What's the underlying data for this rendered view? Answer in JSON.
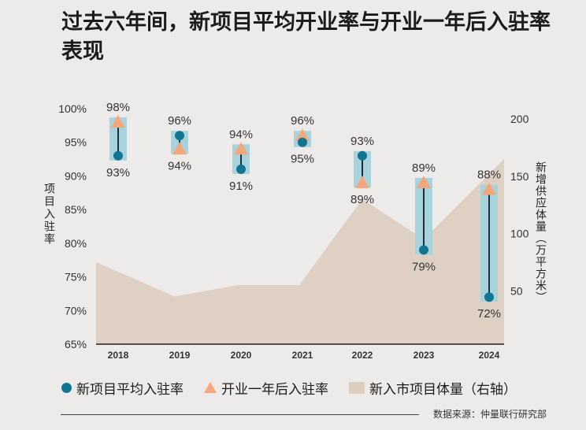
{
  "title": "过去六年间，新项目平均开业率与开业一年后入驻率表现",
  "legend": {
    "avg_label": "新项目平均入驻率",
    "open_label": "开业一年后入驻率",
    "area_label": "新入市项目体量（右轴）"
  },
  "source": "数据来源：仲量联行研究部",
  "colors": {
    "avg": "#127593",
    "open": "#f5a77c",
    "area": "#dccdbd",
    "range": "#a9d3dc"
  },
  "chart_data": {
    "type": "line",
    "categories": [
      "2018",
      "2019",
      "2020",
      "2021",
      "2022",
      "2023",
      "2024"
    ],
    "ylabel_left": "项目入驻率",
    "ylabel_right": "新增供应体量（万平方米）",
    "y_left": {
      "range": [
        65,
        100
      ],
      "ticks": [
        100,
        95,
        90,
        85,
        80,
        75,
        70,
        65
      ],
      "tick_labels": [
        "100%",
        "95%",
        "90%",
        "85%",
        "80%",
        "75%",
        "70%",
        "65%"
      ]
    },
    "y_right": {
      "ticks": [
        200,
        150,
        100,
        50
      ],
      "tick_labels": [
        "200",
        "150",
        "100",
        "50"
      ]
    },
    "series": [
      {
        "name": "新项目平均入驻率",
        "values": [
          93,
          96,
          91,
          95,
          93,
          79,
          72
        ],
        "labels": [
          "93%",
          "96%",
          "91%",
          "95%",
          "93%",
          "79%",
          "72%"
        ]
      },
      {
        "name": "开业一年后入驻率",
        "values": [
          98,
          94,
          94,
          96,
          89,
          89,
          88
        ],
        "labels": [
          "98%",
          "94%",
          "94%",
          "96%",
          "89%",
          "89%",
          "88%"
        ]
      },
      {
        "name": "新入市项目体量（右轴）",
        "values": [
          75,
          45,
          55,
          55,
          130,
          95,
          165
        ]
      }
    ]
  }
}
